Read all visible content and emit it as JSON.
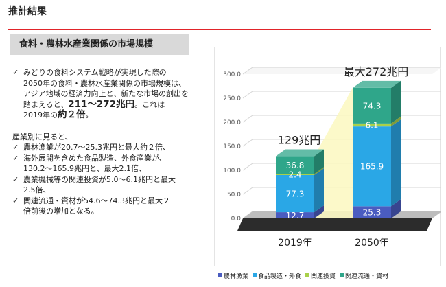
{
  "header": {
    "title": "推計結果"
  },
  "section_label": "食料・農林水産業関係の市場規模",
  "summary": {
    "p1": "みどりの食料システム戦略が実現した際の",
    "p2": "2050年の食料・農林水産業関係の市場規模は、",
    "p3": "アジア地域の経済力向上と、新たな市場の創出を",
    "p4a": "踏まえると、",
    "p4b": "211～272兆円",
    "p4c": "。これは",
    "p5a": "2019年の",
    "p5b": "約２倍",
    "p5c": "。"
  },
  "sector_intro": "産業別に見ると、",
  "sector_items": [
    {
      "l1": "農林漁業が20.7～25.3兆円と最大約２倍、",
      "l2": ""
    },
    {
      "l1": "海外展開を含めた食品製造、外食産業が、",
      "l2": "130.2～165.9兆円と、最大2.1倍、"
    },
    {
      "l1": "農業機械等の関連投資が5.0～6.1兆円と最大",
      "l2": "2.5倍、"
    },
    {
      "l1": "関連流通・資材が54.6～74.3兆円と最大２",
      "l2": "倍前後の増加となる。"
    }
  ],
  "check_symbol": "✓",
  "chart_data": {
    "type": "bar",
    "stacked": true,
    "categories": [
      "2019年",
      "2050年"
    ],
    "series": [
      {
        "name": "農林漁業",
        "values": [
          12.7,
          25.3
        ],
        "color": "#4a5cc0"
      },
      {
        "name": "食品製造・外食",
        "values": [
          77.3,
          165.9
        ],
        "color": "#2aa7e6"
      },
      {
        "name": "関連投資",
        "values": [
          2.4,
          6.1
        ],
        "color": "#a9d04a"
      },
      {
        "name": "関連流通・資材",
        "values": [
          36.8,
          74.3
        ],
        "color": "#2fa68a"
      }
    ],
    "totals_labels": [
      "129兆円",
      "最大272兆円"
    ],
    "y_ticks": [
      "0.0",
      "50.0",
      "100.0",
      "150.0",
      "200.0",
      "250.0",
      "300.0"
    ],
    "ylim": [
      0,
      300
    ]
  }
}
